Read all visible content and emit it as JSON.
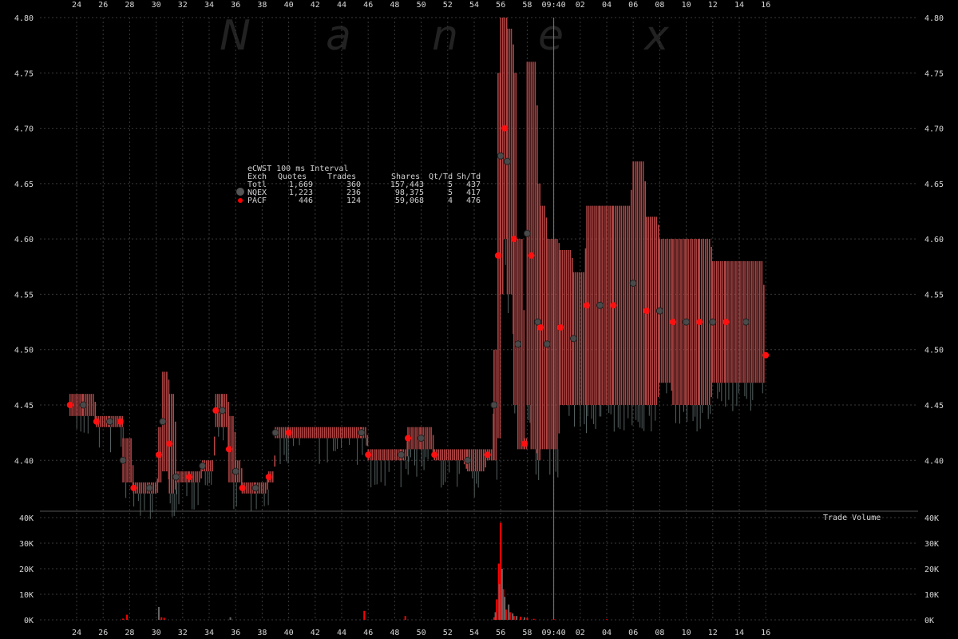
{
  "watermark": [
    "N",
    "a",
    "n",
    "e",
    "x"
  ],
  "chart_data": [
    {
      "type": "line",
      "title": "",
      "x_tick_labels": [
        "24",
        "26",
        "28",
        "30",
        "32",
        "34",
        "36",
        "38",
        "40",
        "42",
        "44",
        "46",
        "48",
        "50",
        "52",
        "54",
        "56",
        "58",
        "09:40",
        "02",
        "04",
        "06",
        "08",
        "10",
        "12",
        "14",
        "16"
      ],
      "y_tick_labels": [
        "4.80",
        "4.75",
        "4.70",
        "4.65",
        "4.60",
        "4.55",
        "4.50",
        "4.45",
        "4.40"
      ],
      "ylim": [
        4.38,
        4.8
      ],
      "grid": true,
      "legend": {
        "title": "eCWST 100 ms Interval",
        "columns": [
          "Exch",
          "Quotes",
          "Trades",
          "Shares",
          "Qt/Td",
          "Sh/Td"
        ],
        "rows": [
          {
            "exch": "Totl",
            "quotes": "1,669",
            "trades": "360",
            "shares": "157,443",
            "qt_td": "5",
            "sh_td": "437",
            "marker": "none"
          },
          {
            "exch": "NQEX",
            "quotes": "1,223",
            "trades": "236",
            "shares": "98,375",
            "qt_td": "5",
            "sh_td": "417",
            "marker": "#555555"
          },
          {
            "exch": "PACF",
            "quotes": "446",
            "trades": "124",
            "shares": "59,068",
            "qt_td": "4",
            "sh_td": "476",
            "marker": "#ff0000"
          }
        ]
      },
      "series": [
        {
          "color": "#b04444",
          "x": [
            23.5,
            24.5,
            25.5,
            26.5,
            27.3,
            27.5,
            28.3,
            29.5,
            30.2,
            30.5,
            31.0,
            31.5,
            32.5,
            33.5,
            34.5,
            35.0,
            35.5,
            36.0,
            36.5,
            37.5,
            38.5,
            39.0,
            40.0,
            45.5,
            46.0,
            48.5,
            49.0,
            50.0,
            51.0,
            53.5,
            55.0,
            55.5,
            55.8,
            56.0,
            56.3,
            56.5,
            57.0,
            57.3,
            57.8,
            58.0,
            58.3,
            58.8,
            59.0,
            59.5,
            60.5,
            61.5,
            62.5,
            63.5,
            64.5,
            66.0,
            67.0,
            68.0,
            69.0,
            70.0,
            71.0,
            72.0,
            73.0,
            74.5,
            76.0
          ],
          "high": [
            4.46,
            4.46,
            4.44,
            4.44,
            4.44,
            4.42,
            4.38,
            4.38,
            4.43,
            4.48,
            4.46,
            4.39,
            4.39,
            4.4,
            4.46,
            4.46,
            4.44,
            4.4,
            4.38,
            4.38,
            4.39,
            4.43,
            4.43,
            4.43,
            4.41,
            4.41,
            4.43,
            4.43,
            4.41,
            4.41,
            4.41,
            4.5,
            4.75,
            4.8,
            4.8,
            4.79,
            4.75,
            4.6,
            4.42,
            4.76,
            4.76,
            4.65,
            4.63,
            4.6,
            4.59,
            4.57,
            4.63,
            4.63,
            4.63,
            4.67,
            4.62,
            4.6,
            4.6,
            4.6,
            4.6,
            4.58,
            4.58,
            4.58,
            4.52
          ],
          "low": [
            4.44,
            4.44,
            4.43,
            4.43,
            4.43,
            4.38,
            4.37,
            4.37,
            4.38,
            4.39,
            4.37,
            4.38,
            4.38,
            4.39,
            4.43,
            4.43,
            4.38,
            4.38,
            4.37,
            4.37,
            4.38,
            4.42,
            4.42,
            4.42,
            4.4,
            4.4,
            4.41,
            4.41,
            4.4,
            4.39,
            4.4,
            4.4,
            4.42,
            4.55,
            4.6,
            4.55,
            4.45,
            4.41,
            4.41,
            4.45,
            4.41,
            4.4,
            4.41,
            4.41,
            4.45,
            4.45,
            4.45,
            4.45,
            4.45,
            4.45,
            4.45,
            4.47,
            4.45,
            4.45,
            4.45,
            4.47,
            4.47,
            4.47,
            4.47
          ]
        }
      ]
    },
    {
      "type": "bar",
      "title": "Trade Volume",
      "y_tick_labels": [
        "40K",
        "30K",
        "20K",
        "10K",
        "0K"
      ],
      "ylim": [
        0,
        40000
      ],
      "x_tick_labels": [
        "24",
        "26",
        "28",
        "30",
        "32",
        "34",
        "36",
        "38",
        "40",
        "42",
        "44",
        "46",
        "48",
        "50",
        "52",
        "54",
        "56",
        "58",
        "09:40",
        "02",
        "04",
        "06",
        "08",
        "10",
        "12",
        "14",
        "16"
      ],
      "series": [
        {
          "color": "#ff0000",
          "x": [
            27.5,
            27.8,
            30.4,
            30.6,
            45.7,
            48.8,
            55.5,
            55.7,
            55.85,
            56.0,
            56.2,
            56.4,
            56.7,
            57.0,
            57.5,
            58.0,
            58.5,
            60.0,
            64.0
          ],
          "values": [
            500,
            2000,
            1000,
            800,
            3500,
            1500,
            1000,
            8000,
            22000,
            38000,
            12000,
            4000,
            3000,
            1500,
            1200,
            800,
            400,
            300,
            200
          ]
        },
        {
          "color": "#666666",
          "x": [
            30.2,
            35.6,
            55.6,
            55.9,
            56.1,
            56.3,
            56.6,
            56.9,
            57.2,
            57.8
          ],
          "values": [
            5000,
            1000,
            3000,
            14000,
            20000,
            9000,
            6000,
            2500,
            1500,
            1000
          ]
        }
      ]
    }
  ]
}
